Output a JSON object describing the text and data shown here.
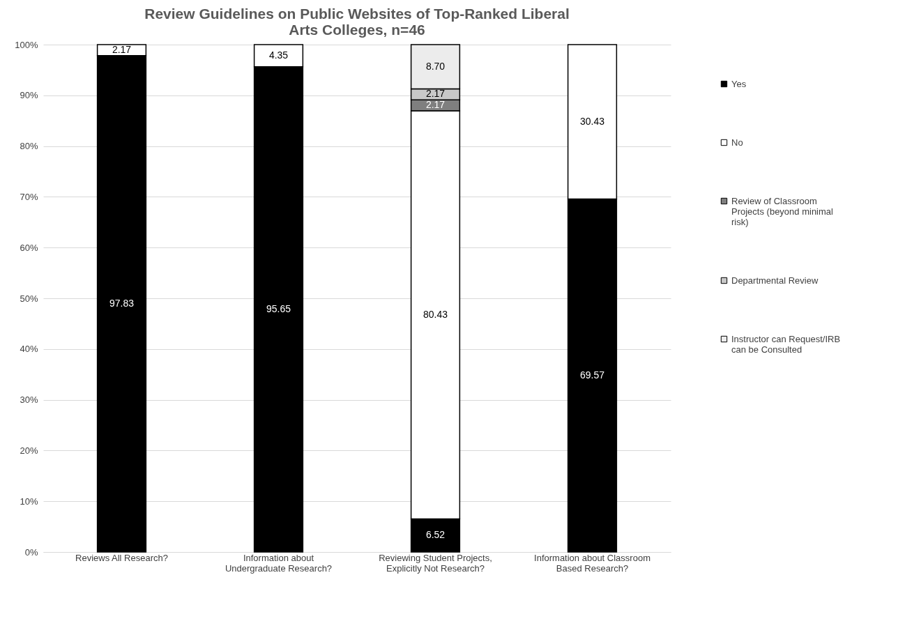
{
  "chart_data": {
    "type": "bar",
    "title": "Review Guidelines on Public Websites of Top-Ranked Liberal Arts Colleges, n=46",
    "categories": [
      "Reviews All Research?",
      "Information about Undergraduate Research?",
      "Reviewing Student Projects, Explicitly Not Research?",
      "Information about Classroom Based Research?"
    ],
    "stacked": true,
    "series": [
      {
        "name": "Yes",
        "color": "#000000",
        "values": [
          97.83,
          95.65,
          6.52,
          69.57
        ],
        "value_labels": [
          "97.83",
          "95.65",
          "6.52",
          "69.57"
        ]
      },
      {
        "name": "No",
        "color": "#ffffff",
        "values": [
          2.17,
          4.35,
          80.43,
          30.43
        ],
        "value_labels": [
          "2.17",
          "4.35",
          "80.43",
          "30.43"
        ]
      },
      {
        "name": "Review of Classroom Projects (beyond minimal risk)",
        "color": "#7f7f7f",
        "values": [
          null,
          null,
          2.17,
          null
        ],
        "value_labels": [
          null,
          null,
          "2.17",
          null
        ]
      },
      {
        "name": "Departmental Review",
        "color": "#c8c8c8",
        "values": [
          null,
          null,
          2.17,
          null
        ],
        "value_labels": [
          null,
          null,
          "2.17",
          null
        ]
      },
      {
        "name": "Instructor can Request/IRB can be Consulted",
        "color": "#ececec",
        "values": [
          null,
          null,
          8.7,
          null
        ],
        "value_labels": [
          null,
          null,
          "8.70",
          null
        ]
      }
    ],
    "ylim": [
      0,
      100
    ],
    "yticks": [
      {
        "value": 0,
        "label": "0%"
      },
      {
        "value": 10,
        "label": "10%"
      },
      {
        "value": 20,
        "label": "20%"
      },
      {
        "value": 30,
        "label": "30%"
      },
      {
        "value": 40,
        "label": "40%"
      },
      {
        "value": 50,
        "label": "50%"
      },
      {
        "value": 60,
        "label": "60%"
      },
      {
        "value": 70,
        "label": "70%"
      },
      {
        "value": 80,
        "label": "80%"
      },
      {
        "value": 90,
        "label": "90%"
      },
      {
        "value": 100,
        "label": "100%"
      }
    ],
    "grid": "y",
    "legend": "right"
  }
}
